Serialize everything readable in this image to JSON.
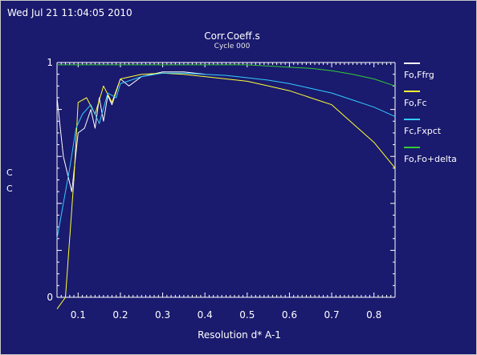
{
  "timestamp": "Wed Jul 21 11:04:05 2010",
  "chart_data": {
    "type": "line",
    "title": "Corr.Coeff.s",
    "subtitle": "Cycle 000",
    "xlabel": "Resolution d* A-1",
    "ylabel_lines": [
      "C",
      "C"
    ],
    "xlim": [
      0.05,
      0.85
    ],
    "ylim": [
      0,
      1
    ],
    "x_ticks": [
      "0.1",
      "0.2",
      "0.3",
      "0.4",
      "0.5",
      "0.6",
      "0.7",
      "0.8"
    ],
    "x_tick_values": [
      0.1,
      0.2,
      0.3,
      0.4,
      0.5,
      0.6,
      0.7,
      0.8
    ],
    "y_ticks": [
      "0",
      "1"
    ],
    "y_tick_values": [
      0,
      1
    ],
    "series": [
      {
        "name": "Fo,Ffrg",
        "color": "#ffffff",
        "x": [
          0.05,
          0.065,
          0.085,
          0.1,
          0.115,
          0.13,
          0.14,
          0.15,
          0.16,
          0.17,
          0.18,
          0.2,
          0.22,
          0.25,
          0.3,
          0.35,
          0.4
        ],
        "y": [
          0.85,
          0.6,
          0.45,
          0.7,
          0.72,
          0.8,
          0.72,
          0.85,
          0.75,
          0.86,
          0.82,
          0.93,
          0.9,
          0.94,
          0.96,
          0.96,
          0.95
        ]
      },
      {
        "name": "Fo,Fc",
        "color": "#ffff33",
        "x": [
          0.05,
          0.07,
          0.09,
          0.1,
          0.12,
          0.14,
          0.16,
          0.18,
          0.2,
          0.25,
          0.3,
          0.35,
          0.4,
          0.45,
          0.5,
          0.55,
          0.6,
          0.65,
          0.7,
          0.75,
          0.8,
          0.85
        ],
        "y": [
          -0.05,
          0.0,
          0.5,
          0.83,
          0.85,
          0.78,
          0.9,
          0.83,
          0.93,
          0.95,
          0.955,
          0.95,
          0.94,
          0.93,
          0.92,
          0.9,
          0.88,
          0.85,
          0.82,
          0.74,
          0.66,
          0.55
        ]
      },
      {
        "name": "Fc,Fxpct",
        "color": "#33ccff",
        "x": [
          0.05,
          0.065,
          0.08,
          0.095,
          0.11,
          0.13,
          0.15,
          0.17,
          0.19,
          0.2,
          0.25,
          0.3,
          0.35,
          0.4,
          0.45,
          0.5,
          0.55,
          0.6,
          0.65,
          0.7,
          0.75,
          0.8,
          0.85
        ],
        "y": [
          0.25,
          0.4,
          0.55,
          0.72,
          0.78,
          0.82,
          0.74,
          0.87,
          0.85,
          0.91,
          0.94,
          0.955,
          0.955,
          0.95,
          0.945,
          0.935,
          0.925,
          0.91,
          0.89,
          0.87,
          0.84,
          0.81,
          0.77
        ]
      },
      {
        "name": "Fo,Fo+delta",
        "color": "#33cc33",
        "x": [
          0.05,
          0.1,
          0.2,
          0.3,
          0.4,
          0.45,
          0.5,
          0.55,
          0.6,
          0.65,
          0.7,
          0.75,
          0.8,
          0.85
        ],
        "y": [
          0.99,
          0.99,
          0.99,
          0.99,
          0.99,
          0.99,
          0.99,
          0.985,
          0.98,
          0.975,
          0.965,
          0.95,
          0.93,
          0.9
        ]
      }
    ]
  }
}
